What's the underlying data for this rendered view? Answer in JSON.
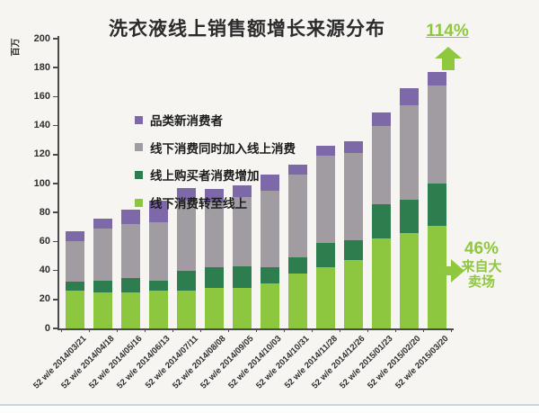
{
  "title": "洗衣液线上销售额增长来源分布",
  "annotations": {
    "growth_total": "114%",
    "hypermarket_pct": "46%",
    "hypermarket_label_line1": "来自大",
    "hypermarket_label_line2": "卖场"
  },
  "colors": {
    "accent_green": "#8FC73E",
    "light_green": "#8DC63F",
    "dark_green": "#2E7D4E",
    "gray": "#A19CA2",
    "purple": "#7D68A8",
    "axis": "#4a4a4a",
    "background": "#f6f5f2"
  },
  "chart_data": {
    "type": "bar",
    "stacked": true,
    "title": "洗衣液线上销售额增长来源分布",
    "xlabel": "",
    "ylabel": "百万",
    "ylim": [
      0,
      200
    ],
    "yticks": [
      0,
      20,
      40,
      60,
      80,
      100,
      120,
      140,
      160,
      180,
      200
    ],
    "grid": false,
    "legend_position": "upper-left-inside",
    "categories": [
      "52 w/e 2014/03/21",
      "52 w/e 2014/04/18",
      "52 w/e 2014/05/16",
      "52 w/e 2014/06/13",
      "52 w/e 2014/07/11",
      "52 w/e 2014/08/08",
      "52 w/e 2014/09/05",
      "52 w/e 2014/10/03",
      "52 w/e 2014/10/31",
      "52 w/e 2014/11/28",
      "52 w/e 2014/12/26",
      "52 w/e 2015/01/23",
      "52 w/e 2015/02/20",
      "52 w/e 2015/03/20"
    ],
    "series": [
      {
        "name": "线下消费转至线上",
        "color": "#8DC63F",
        "values": [
          26,
          25,
          25,
          26,
          26,
          28,
          28,
          31,
          38,
          42,
          47,
          62,
          66,
          71
        ]
      },
      {
        "name": "线上购买者消费增加",
        "color": "#2E7D4E",
        "values": [
          6,
          8,
          10,
          7,
          14,
          14,
          15,
          11,
          11,
          17,
          14,
          24,
          23,
          29
        ]
      },
      {
        "name": "线下消费同时加入线上消费",
        "color": "#A19CA2",
        "values": [
          28,
          36,
          37,
          40,
          48,
          45,
          48,
          53,
          57,
          60,
          60,
          54,
          65,
          68
        ]
      },
      {
        "name": "品类新消费者",
        "color": "#7D68A8",
        "values": [
          7,
          7,
          10,
          15,
          9,
          9,
          8,
          11,
          7,
          7,
          8,
          9,
          12,
          9
        ]
      }
    ],
    "legend_display_order": [
      "品类新消费者",
      "线下消费同时加入线上消费",
      "线上购买者消费增加",
      "线下消费转至线上"
    ],
    "totals": [
      67,
      76,
      82,
      88,
      97,
      96,
      99,
      106,
      113,
      126,
      129,
      149,
      166,
      177
    ]
  }
}
